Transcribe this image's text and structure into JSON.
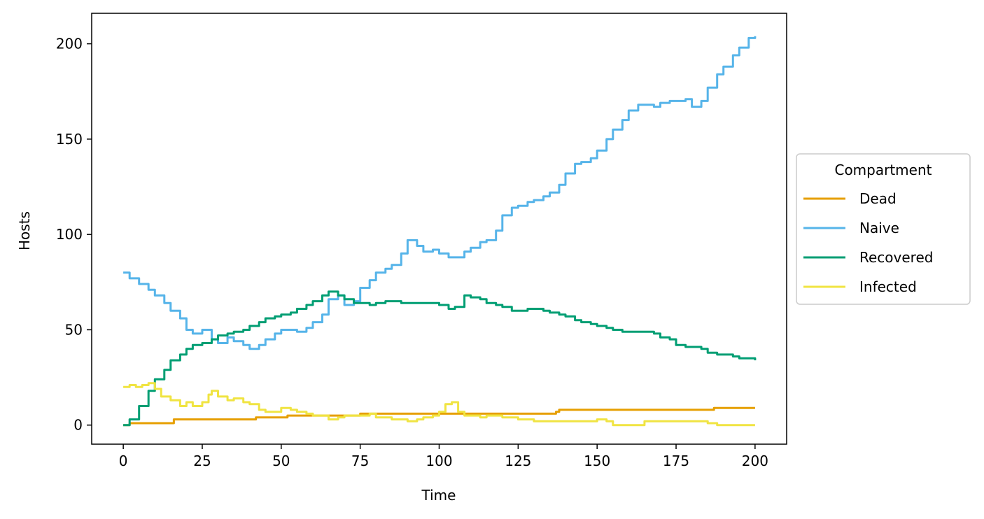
{
  "chart_data": {
    "type": "line",
    "title": "",
    "xlabel": "Time",
    "ylabel": "Hosts",
    "xlim": [
      -10,
      210
    ],
    "ylim": [
      -10,
      216
    ],
    "xticks": [
      0,
      25,
      50,
      75,
      100,
      125,
      150,
      175,
      200
    ],
    "yticks": [
      0,
      50,
      100,
      150,
      200
    ],
    "grid": false,
    "legend": {
      "title": "Compartment",
      "placement": "center-right-outside"
    },
    "series": [
      {
        "name": "Dead",
        "color": "#E69F00",
        "x": [
          0,
          2,
          15,
          16,
          40,
          42,
          50,
          52,
          75,
          112,
          137,
          138,
          186,
          187,
          200
        ],
        "y": [
          0,
          1,
          1,
          3,
          3,
          4,
          4,
          5,
          6,
          6,
          7,
          8,
          8,
          9,
          9
        ]
      },
      {
        "name": "Naive",
        "color": "#56B4E9",
        "x": [
          0,
          2,
          5,
          8,
          10,
          13,
          15,
          18,
          20,
          22,
          25,
          28,
          30,
          33,
          35,
          38,
          40,
          43,
          45,
          48,
          50,
          53,
          55,
          58,
          60,
          63,
          65,
          68,
          70,
          73,
          75,
          78,
          80,
          83,
          85,
          88,
          90,
          93,
          95,
          98,
          100,
          103,
          105,
          108,
          110,
          113,
          115,
          118,
          120,
          123,
          125,
          128,
          130,
          133,
          135,
          138,
          140,
          143,
          145,
          148,
          150,
          153,
          155,
          158,
          160,
          163,
          165,
          168,
          170,
          173,
          175,
          178,
          180,
          183,
          185,
          188,
          190,
          193,
          195,
          198,
          200
        ],
        "y": [
          80,
          77,
          74,
          71,
          68,
          64,
          60,
          56,
          50,
          48,
          50,
          45,
          43,
          46,
          44,
          42,
          40,
          42,
          45,
          48,
          50,
          50,
          49,
          51,
          54,
          58,
          66,
          68,
          63,
          65,
          72,
          76,
          80,
          82,
          84,
          90,
          97,
          94,
          91,
          92,
          90,
          88,
          88,
          91,
          93,
          96,
          97,
          102,
          110,
          114,
          115,
          117,
          118,
          120,
          122,
          126,
          132,
          137,
          138,
          140,
          144,
          150,
          155,
          160,
          165,
          168,
          168,
          167,
          169,
          170,
          170,
          171,
          167,
          170,
          177,
          184,
          188,
          194,
          198,
          203,
          204
        ]
      },
      {
        "name": "Recovered",
        "color": "#009E73",
        "x": [
          0,
          2,
          5,
          8,
          10,
          13,
          15,
          18,
          20,
          22,
          25,
          28,
          30,
          33,
          35,
          38,
          40,
          43,
          45,
          48,
          50,
          53,
          55,
          58,
          60,
          63,
          65,
          68,
          70,
          73,
          75,
          78,
          80,
          83,
          85,
          88,
          90,
          93,
          95,
          98,
          100,
          103,
          105,
          108,
          110,
          113,
          115,
          118,
          120,
          123,
          125,
          128,
          130,
          133,
          135,
          138,
          140,
          143,
          145,
          148,
          150,
          153,
          155,
          158,
          160,
          163,
          165,
          168,
          170,
          173,
          175,
          178,
          180,
          183,
          185,
          188,
          190,
          193,
          195,
          198,
          200
        ],
        "y": [
          0,
          3,
          10,
          18,
          24,
          29,
          34,
          37,
          40,
          42,
          43,
          45,
          47,
          48,
          49,
          50,
          52,
          54,
          56,
          57,
          58,
          59,
          61,
          63,
          65,
          68,
          70,
          68,
          66,
          64,
          64,
          63,
          64,
          65,
          65,
          64,
          64,
          64,
          64,
          64,
          63,
          61,
          62,
          68,
          67,
          66,
          64,
          63,
          62,
          60,
          60,
          61,
          61,
          60,
          59,
          58,
          57,
          55,
          54,
          53,
          52,
          51,
          50,
          49,
          49,
          49,
          49,
          48,
          46,
          45,
          42,
          41,
          41,
          40,
          38,
          37,
          37,
          36,
          35,
          35,
          34
        ]
      },
      {
        "name": "Infected",
        "color": "#F0E442",
        "x": [
          0,
          2,
          4,
          6,
          8,
          10,
          12,
          15,
          18,
          20,
          22,
          25,
          27,
          28,
          30,
          33,
          35,
          38,
          40,
          43,
          45,
          48,
          50,
          53,
          55,
          58,
          60,
          63,
          65,
          68,
          70,
          73,
          75,
          78,
          80,
          83,
          85,
          88,
          90,
          93,
          95,
          98,
          100,
          102,
          104,
          106,
          108,
          110,
          113,
          115,
          118,
          120,
          123,
          125,
          128,
          130,
          133,
          135,
          138,
          140,
          143,
          145,
          148,
          150,
          153,
          155,
          158,
          160,
          163,
          165,
          168,
          170,
          173,
          175,
          178,
          180,
          183,
          185,
          188,
          190,
          193,
          195,
          198,
          200
        ],
        "y": [
          20,
          21,
          20,
          21,
          22,
          19,
          15,
          13,
          10,
          12,
          10,
          12,
          16,
          18,
          15,
          13,
          14,
          12,
          11,
          8,
          7,
          7,
          9,
          8,
          7,
          6,
          5,
          5,
          3,
          4,
          5,
          5,
          5,
          6,
          4,
          4,
          3,
          3,
          2,
          3,
          4,
          5,
          7,
          11,
          12,
          7,
          5,
          5,
          4,
          5,
          5,
          4,
          4,
          3,
          3,
          2,
          2,
          2,
          2,
          2,
          2,
          2,
          2,
          3,
          2,
          0,
          0,
          0,
          0,
          2,
          2,
          2,
          2,
          2,
          2,
          2,
          2,
          1,
          0,
          0,
          0,
          0,
          0,
          0
        ]
      }
    ]
  }
}
